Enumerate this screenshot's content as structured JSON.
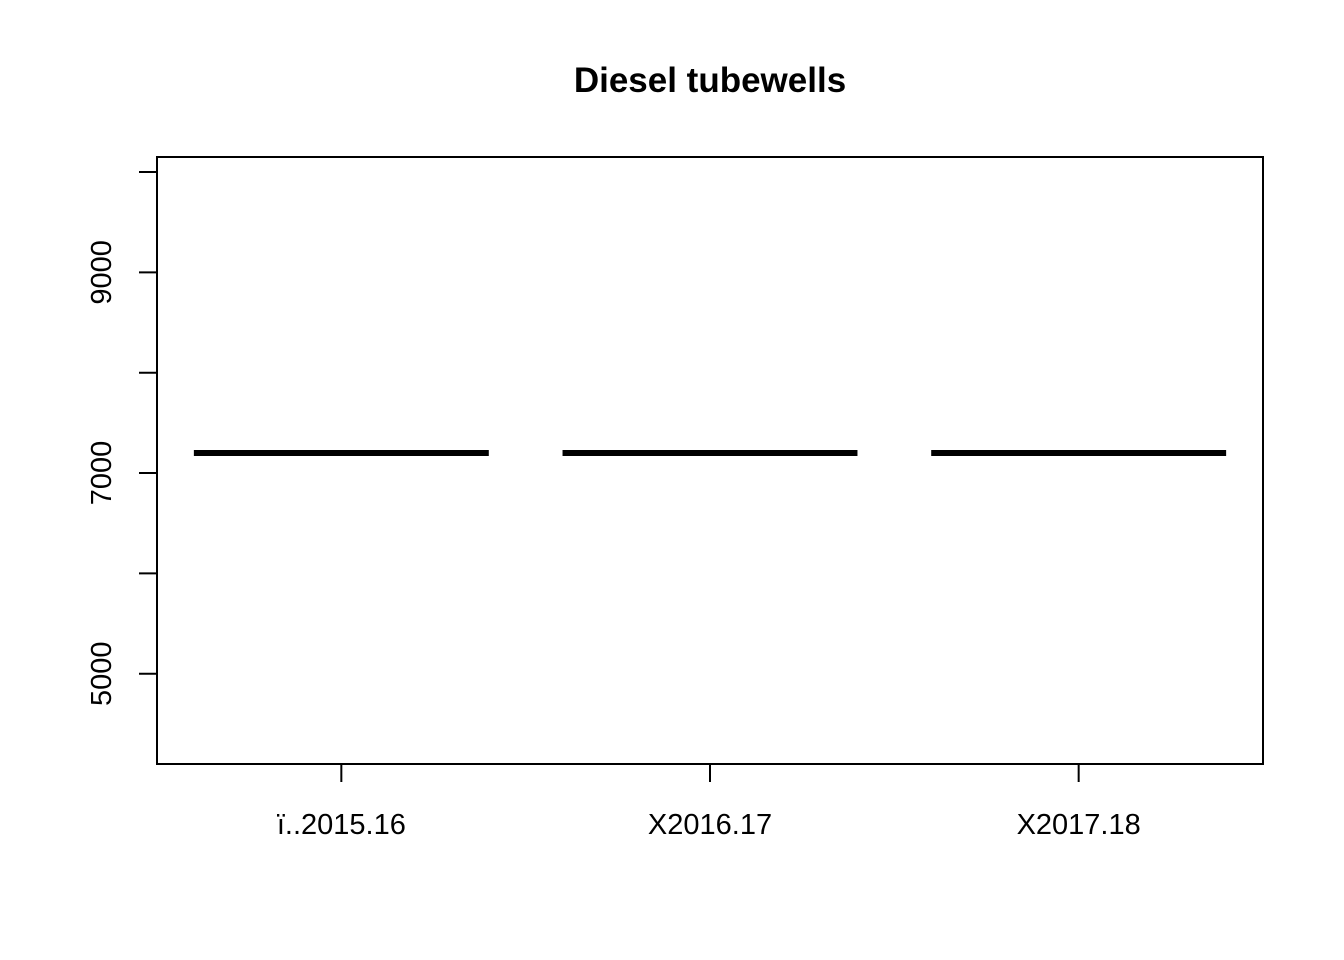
{
  "chart_data": {
    "type": "box",
    "title": "Diesel tubewells",
    "xlabel": "",
    "ylabel": "",
    "categories": [
      "ï..2015.16",
      "X2016.17",
      "X2017.18"
    ],
    "values": [
      7200,
      7200,
      7200
    ],
    "ylim": [
      4100,
      10150
    ],
    "yticks": [
      5000,
      6000,
      7000,
      8000,
      9000,
      10000
    ],
    "ytick_labels": [
      "5000",
      "",
      "7000",
      "",
      "9000",
      ""
    ],
    "grid": false,
    "legend": "none"
  }
}
